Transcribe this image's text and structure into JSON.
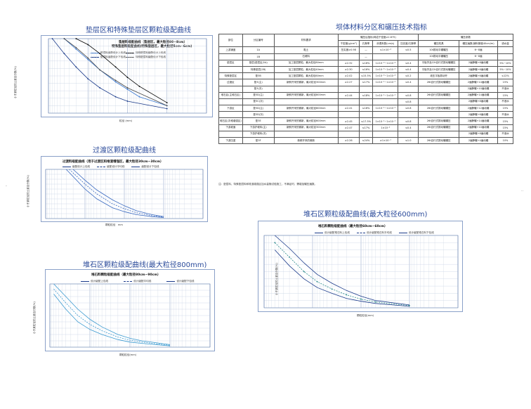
{
  "headings": {
    "h1": "垫层区和特殊垫层区颗粒级配曲线",
    "h2": "过渡区颗粒级配曲线",
    "h3": "堆石区颗粒级配曲线(最大粒径800mm)",
    "h4": "坝体材料分区和碾压技术指标",
    "h5": "堆石区颗粒级配曲线(最大粒径600mm)"
  },
  "charts": {
    "c1": {
      "title1": "垫层料级配曲线（垫层区，最大粒径80~8cm）",
      "title2": "特殊垫层料级配曲线(特殊垫层区，最大粒径5cm~6cm)",
      "legend": [
        "垫层料级配设计上包线",
        "垫层料级配设计下包线",
        "特殊垫层料级配设计上包线",
        "特殊垫层料级配设计下包线"
      ],
      "xlabel": "粒径 (mm)",
      "ylabel": "小于某粒径的土重百分数(%)",
      "yticks": [
        "100",
        "90",
        "80",
        "70",
        "60",
        "50",
        "40",
        "30",
        "20",
        "10",
        "0"
      ],
      "xticks": [
        "100",
        "10",
        "1",
        "0.1",
        "0.01"
      ]
    },
    "c2": {
      "title": "过渡料级配曲线（用于过渡区和堆渣增强区，最大粒径30cm~30cm）",
      "legend": [
        "级配设计上包线",
        "级配设计平均线",
        "级配设计下包线"
      ],
      "xlabel": "颗粒粒径",
      "xunit": "mm",
      "ylabel": "小于某粒径的土重百分数(%)"
    },
    "c3": {
      "title": "堆石料颗粒级配曲线（最大粒径80cm~90cm）",
      "legend": [
        "设计级配上包线",
        "设计级配平均线",
        "设计级配下包线"
      ],
      "xlabel": "颗粒粒径(mm)",
      "ylabel": "小于某粒径的土重百分数(%)"
    },
    "c4": {
      "title": "堆石料颗粒级配曲线（最大粒径60cm~60cm）",
      "legend": [
        "设计级配堆石料上包线",
        "设计级配堆石料平均线",
        "设计级配堆石料下包线"
      ],
      "xlabel": "颗粒粒径(mm)",
      "ylabel": "小于某粒径的土重百分数(%)"
    }
  },
  "chart_data": [
    {
      "type": "line",
      "title": "垫层料级配曲线（垫层区，最大粒径80~8cm）",
      "xlabel": "粒径 (mm)",
      "ylabel": "小于某粒径的土重百分数(%)",
      "x_scale": "log",
      "xlim": [
        100,
        0.01
      ],
      "ylim": [
        0,
        100
      ],
      "grid": true,
      "series": [
        {
          "name": "垫层料级配设计上包线",
          "x": [
            40,
            20,
            10,
            5,
            2,
            1,
            0.5,
            0.1
          ],
          "y": [
            100,
            86,
            72,
            58,
            42,
            32,
            22,
            10
          ]
        },
        {
          "name": "垫层料级配设计下包线",
          "x": [
            80,
            40,
            20,
            10,
            5,
            2,
            1,
            0.1
          ],
          "y": [
            100,
            80,
            62,
            46,
            34,
            22,
            16,
            6
          ]
        },
        {
          "name": "特殊垫层料级配设计上包线",
          "x": [
            20,
            10,
            5,
            2,
            1,
            0.5,
            0.1
          ],
          "y": [
            100,
            92,
            80,
            62,
            48,
            36,
            14
          ]
        },
        {
          "name": "特殊垫层料级配设计下包线",
          "x": [
            40,
            20,
            10,
            5,
            2,
            1,
            0.1
          ],
          "y": [
            100,
            88,
            74,
            58,
            44,
            34,
            10
          ]
        }
      ]
    },
    {
      "type": "line",
      "title": "过渡料级配曲线（用于过渡区和堆渣增强区，最大粒径30cm~30cm）",
      "xlabel": "颗粒粒径",
      "ylabel": "小于某粒径的土重百分数(%)",
      "x_scale": "log",
      "xlim": [
        1000,
        0.1
      ],
      "ylim": [
        0,
        100
      ],
      "grid": true,
      "series": [
        {
          "name": "级配设计上包线",
          "x": [
            200,
            100,
            50,
            20,
            10,
            5,
            2,
            1
          ],
          "y": [
            100,
            78,
            58,
            38,
            26,
            16,
            8,
            4
          ]
        },
        {
          "name": "级配设计平均线",
          "x": [
            250,
            100,
            50,
            20,
            10,
            5,
            2,
            1
          ],
          "y": [
            100,
            70,
            50,
            30,
            20,
            12,
            6,
            3
          ]
        },
        {
          "name": "级配设计下包线",
          "x": [
            300,
            100,
            50,
            20,
            10,
            5,
            2,
            1
          ],
          "y": [
            100,
            60,
            40,
            22,
            14,
            8,
            4,
            2
          ]
        }
      ]
    },
    {
      "type": "line",
      "title": "堆石料颗粒级配曲线（最大粒径80cm~90cm）",
      "xlabel": "颗粒粒径(mm)",
      "ylabel": "小于某粒径的土重百分数(%)",
      "x_scale": "log",
      "xlim": [
        1000,
        0.1
      ],
      "ylim": [
        0,
        100
      ],
      "grid": true,
      "series": [
        {
          "name": "设计级配上包线",
          "x": [
            800,
            400,
            200,
            100,
            50,
            20,
            10,
            5,
            1
          ],
          "y": [
            100,
            80,
            60,
            44,
            32,
            20,
            14,
            10,
            4
          ]
        },
        {
          "name": "设计级配平均线",
          "x": [
            800,
            400,
            200,
            100,
            50,
            20,
            10,
            5,
            1
          ],
          "y": [
            92,
            70,
            50,
            36,
            26,
            16,
            11,
            8,
            3
          ]
        },
        {
          "name": "设计级配下包线",
          "x": [
            800,
            400,
            200,
            100,
            50,
            20,
            10,
            5,
            1
          ],
          "y": [
            84,
            60,
            40,
            28,
            20,
            12,
            8,
            6,
            2
          ]
        }
      ]
    },
    {
      "type": "line",
      "title": "堆石料颗粒级配曲线（最大粒径60cm~60cm）",
      "xlabel": "颗粒粒径(mm)",
      "ylabel": "小于某粒径的土重百分数(%)",
      "x_scale": "log",
      "xlim": [
        1000,
        0.1
      ],
      "ylim": [
        0,
        100
      ],
      "grid": true,
      "series": [
        {
          "name": "设计级配堆石料上包线",
          "x": [
            600,
            300,
            150,
            80,
            40,
            20,
            10,
            5,
            1
          ],
          "y": [
            100,
            82,
            62,
            46,
            34,
            24,
            16,
            10,
            4
          ]
        },
        {
          "name": "设计级配堆石料平均线",
          "x": [
            600,
            300,
            150,
            80,
            40,
            20,
            10,
            5,
            1
          ],
          "y": [
            90,
            70,
            50,
            36,
            26,
            18,
            12,
            8,
            3
          ]
        },
        {
          "name": "设计级配堆石料下包线",
          "x": [
            600,
            300,
            150,
            80,
            40,
            20,
            10,
            5,
            1
          ],
          "y": [
            80,
            58,
            40,
            28,
            20,
            13,
            9,
            6,
            2
          ]
        }
      ]
    }
  ],
  "table": {
    "header1": [
      "部位",
      "分区编号",
      "材料要求",
      "碾压后指标(母岩干密度≥2.675)",
      "碾压参数"
    ],
    "header2": [
      "干密度(g/cm³)",
      "孔隙率",
      "渗透系数(cm/s)",
      "压实度/孔隙率",
      "碾压机具",
      "碾压遍数(铺料厚度40cm/m)",
      "洒水量"
    ],
    "rows": [
      [
        "上游铺盖",
        "1A",
        "黏土",
        "压实度≥0.98",
        "—",
        "≤1×10⁻⁴",
        "≤0.5",
        "10t振动平碾碾压",
        "6~8遍",
        ""
      ],
      [
        "",
        "1B",
        "石碴料",
        "",
        "—",
        "",
        "",
        "10t振动平碾碾压",
        "6~8遍",
        ""
      ],
      [
        "垫层区",
        "垫层(垫层区/2A)",
        "加工垫层颗粒，最大粒径80mm",
        "≥2.32",
        "≤16%",
        "1×10⁻³~1×10⁻⁴",
        "≤0.4",
        "平板夯及22t自行式振动碾碾压",
        "2遍静碾+8遍动碾",
        "5%~10%"
      ],
      [
        "",
        "特殊垫层(2B)",
        "加工垫层颗粒，最大粒径40mm",
        "≥2.30",
        "≤16%",
        "1×10⁻³~1×10⁻⁴",
        "≤0.4",
        "平板夯及22t自行式振动碾碾压",
        "2遍静碾+6遍动碾",
        "5%~10%"
      ],
      [
        "特殊垫层区",
        "垫3B",
        "加工垫层颗粒，最大粒径60mm",
        "≥2.02",
        "≤15.5%",
        "1×10⁻³~1×10⁻⁴",
        "≤0.2",
        "液压平板振动夯",
        "2遍静碾+6遍动碾",
        "≤12%"
      ],
      [
        "过渡区",
        "垫3(主)",
        "新鲜开采的微新，最大粒径300mm",
        "≥2.27",
        "≤17%",
        "1×10⁻¹~1×10⁻²",
        "≤0.4",
        "26t自行式振动碾碾压",
        "2遍静碾+14遍动碾",
        "15%"
      ],
      [
        "",
        "垫3(次)",
        "",
        "",
        "",
        "",
        "",
        "",
        "2遍静碾+10遍动碾",
        "不洒水"
      ],
      [
        "堆石区(主堆石区)",
        "垫3D(主)",
        "新鲜开采的微新，最大粒径800mm",
        "≥2.44",
        "≤18%",
        "1×10⁻¹~1×10⁻²",
        "≤0.8",
        "26t自行式振动碾碾压",
        "2遍静碾+14遍动碾",
        "15%"
      ],
      [
        "",
        "垫3C(次)",
        "",
        "",
        "",
        "",
        "≤0.8",
        "",
        "2遍静碾+8遍动碾",
        "不洒水"
      ],
      [
        "下游区",
        "垫3D(主)",
        "新鲜开采的微新，最大粒径800mm",
        "≥2.41",
        "≤18%",
        "1×10⁻¹~1×10⁻²",
        "≤0.8",
        "26t自行式振动碾碾压",
        "2遍静碾+12遍动碾",
        "15%"
      ],
      [
        "",
        "垫3D(次)",
        "",
        "",
        "",
        "",
        "",
        "",
        "2遍静碾+6遍动碾",
        "不洒水"
      ],
      [
        "堆石区(次堆增强区)",
        "垫3E",
        "新鲜开采的微新，最大粒径600mm",
        "≥2.45",
        "≤17.5%",
        "1×10⁻¹~1×10⁻²",
        "≤0.8",
        "26t自行式振动碾碾压",
        "2遍静碾+14遍动碾",
        "15%"
      ],
      [
        "下游坡面",
        "下游护坡料(主)",
        "新鲜开采的微新，最大粒径300mm",
        "≥2.47",
        "≤17%",
        "1×10⁻²",
        "≤0.4",
        "26t自行式振动碾碾压",
        "2遍静碾+10遍动碾",
        "15%"
      ],
      [
        "",
        "下游护坡料(次)",
        "",
        "",
        "",
        "",
        "",
        "",
        "2遍静碾+8遍动碾",
        "不洒水"
      ],
      [
        "下游压重",
        "垫3F",
        "新鲜开采的微新",
        "≥2.26",
        "≤24%",
        "≥1×10⁻¹",
        "≤1.0",
        "26t自行式振动碾碾压",
        "2遍静碾+4遍动碾",
        "10%"
      ]
    ],
    "note": "注：垫层料、特殊垫层料和堆渣增强区加水量随试验施工，不满足时，需增加碾压遍数。"
  },
  "marks": {
    "dot_right": "..",
    "dot_left": "-"
  }
}
